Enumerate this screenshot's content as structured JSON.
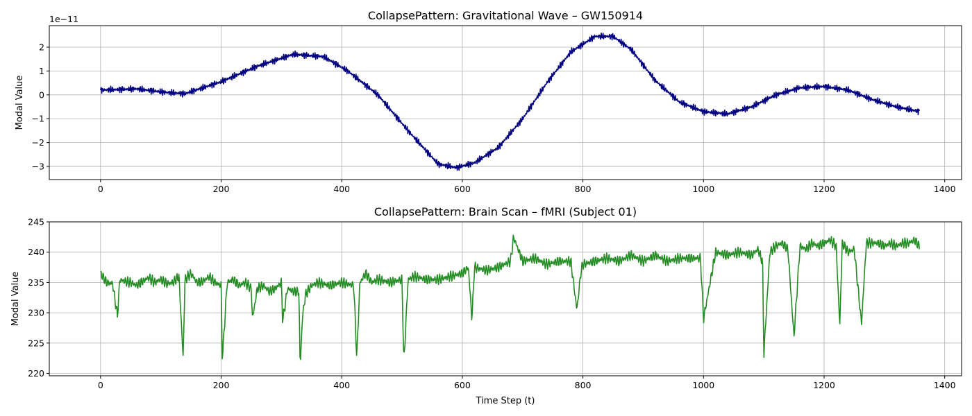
{
  "chart_data": [
    {
      "type": "line",
      "title": "CollapsePattern: Gravitational Wave – GW150914",
      "xlabel": "",
      "ylabel": "Modal Value",
      "offset_text": "1e−11",
      "y_scale_note": "values in units of 1e-11",
      "xlim": [
        -85,
        1428
      ],
      "ylim": [
        -3.55,
        2.9
      ],
      "xticks": [
        0,
        200,
        400,
        600,
        800,
        1000,
        1200,
        1400
      ],
      "yticks": [
        -3,
        -2,
        -1,
        0,
        1,
        2
      ],
      "ytick_labels": [
        "−3",
        "−2",
        "−1",
        "0",
        "1",
        "2"
      ],
      "grid": true,
      "color": "#000080",
      "n_points": 1360,
      "oscillation_amplitude_approx": 0.15,
      "series": [
        {
          "x": [
            0,
            60,
            110,
            140,
            200,
            260,
            320,
            370,
            410,
            460,
            510,
            560,
            590,
            620,
            660,
            700,
            740,
            780,
            820,
            850,
            880,
            920,
            960,
            1000,
            1040,
            1080,
            1120,
            1160,
            1200,
            1240,
            1280,
            1320,
            1358
          ],
          "values": [
            0.2,
            0.25,
            0.1,
            0.05,
            0.55,
            1.2,
            1.7,
            1.6,
            1.0,
            0.0,
            -1.5,
            -2.9,
            -3.05,
            -2.85,
            -2.2,
            -1.0,
            0.5,
            1.8,
            2.45,
            2.45,
            1.9,
            0.6,
            -0.3,
            -0.7,
            -0.8,
            -0.5,
            0.0,
            0.3,
            0.35,
            0.2,
            -0.2,
            -0.5,
            -0.7
          ]
        }
      ]
    },
    {
      "type": "line",
      "title": "CollapsePattern: Brain Scan – fMRI (Subject 01)",
      "xlabel": "Time Step (t)",
      "ylabel": "Modal Value",
      "xlim": [
        -85,
        1428
      ],
      "ylim": [
        219.6,
        245.0
      ],
      "xticks": [
        0,
        200,
        400,
        600,
        800,
        1000,
        1200,
        1400
      ],
      "yticks": [
        220,
        225,
        230,
        235,
        240,
        245
      ],
      "grid": true,
      "color": "#228b22",
      "n_points": 1360,
      "series": [
        {
          "x": [
            0,
            10,
            20,
            28,
            32,
            40,
            50,
            60,
            70,
            80,
            90,
            100,
            110,
            120,
            130,
            137,
            140,
            150,
            160,
            170,
            180,
            190,
            200,
            202,
            210,
            220,
            230,
            240,
            250,
            252,
            260,
            270,
            280,
            290,
            300,
            302,
            310,
            320,
            329,
            331,
            335,
            340,
            350,
            360,
            380,
            400,
            420,
            425,
            430,
            440,
            450,
            460,
            480,
            500,
            503,
            510,
            520,
            540,
            560,
            580,
            600,
            610,
            616,
            620,
            640,
            660,
            670,
            680,
            685,
            700,
            720,
            740,
            760,
            780,
            790,
            797,
            800,
            820,
            840,
            860,
            880,
            900,
            920,
            940,
            960,
            980,
            995,
            1000,
            1020,
            1040,
            1060,
            1080,
            1090,
            1098,
            1100,
            1110,
            1120,
            1130,
            1140,
            1150,
            1160,
            1170,
            1180,
            1190,
            1200,
            1210,
            1220,
            1226,
            1230,
            1240,
            1250,
            1262,
            1270,
            1280,
            1290,
            1300,
            1310,
            1320,
            1330,
            1340,
            1350,
            1358
          ],
          "values": [
            236.5,
            235.0,
            234.8,
            229.5,
            235.5,
            235.2,
            235.0,
            234.5,
            235.2,
            235.8,
            235.0,
            235.5,
            234.8,
            235.0,
            236.0,
            222.5,
            235.5,
            236.5,
            235.0,
            235.2,
            236.0,
            235.0,
            234.5,
            222.3,
            235.0,
            235.5,
            234.5,
            235.0,
            234.0,
            229.0,
            234.0,
            234.5,
            233.5,
            234.0,
            235.0,
            228.5,
            234.0,
            233.5,
            233.5,
            221.0,
            229.5,
            233.0,
            234.5,
            235.0,
            234.5,
            235.0,
            234.5,
            222.5,
            235.0,
            236.5,
            235.0,
            235.5,
            235.0,
            235.5,
            221.5,
            235.5,
            236.0,
            235.5,
            235.5,
            236.0,
            236.5,
            237.5,
            228.8,
            237.5,
            237.0,
            237.5,
            238.0,
            238.5,
            242.5,
            238.5,
            239.0,
            238.0,
            238.5,
            238.5,
            230.5,
            237.0,
            238.0,
            238.5,
            239.0,
            238.5,
            239.5,
            238.5,
            239.5,
            238.5,
            239.0,
            239.0,
            239.0,
            229.0,
            240.0,
            239.5,
            240.0,
            239.5,
            240.5,
            238.5,
            223.0,
            240.0,
            241.0,
            241.5,
            240.5,
            226.0,
            241.0,
            240.5,
            241.5,
            241.0,
            241.5,
            242.0,
            241.0,
            227.8,
            241.5,
            240.0,
            240.5,
            228.2,
            241.5,
            241.5,
            241.5,
            241.0,
            241.5,
            241.0,
            241.5,
            241.5,
            242.0,
            241.0
          ]
        }
      ]
    }
  ]
}
